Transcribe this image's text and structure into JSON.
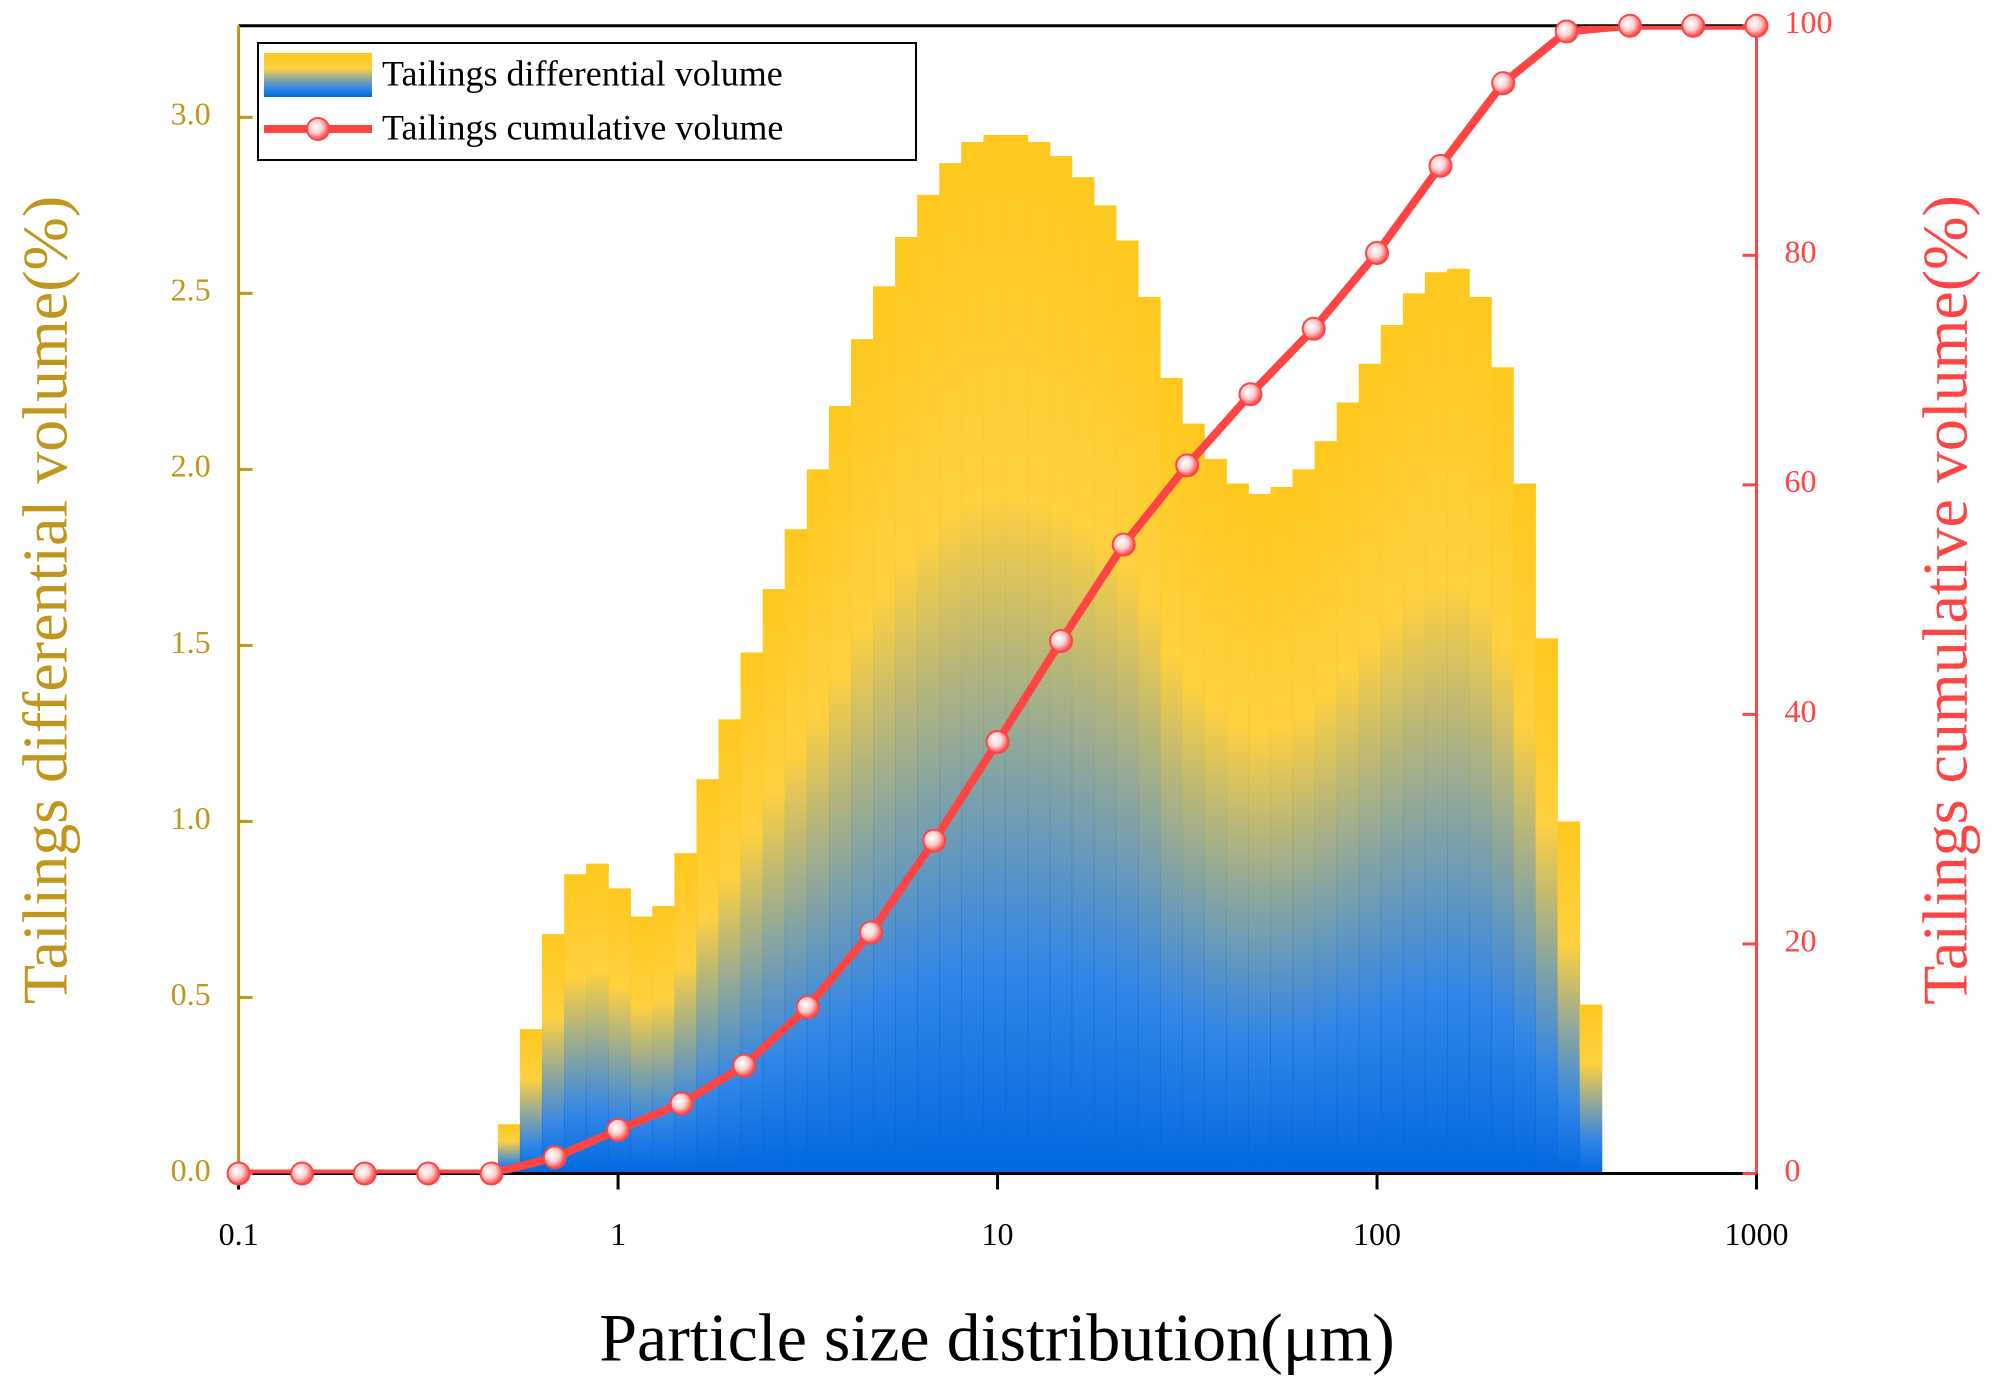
{
  "chart_data": {
    "type": "histogram",
    "x_label": "Particle size distribution(μm)",
    "y_label": "Tailings differential volume(%)",
    "y2_label": "Tailings cumulative volume(%)",
    "log_x": true,
    "xlim": [
      0.1,
      1000
    ],
    "xticks": [
      0.1,
      1,
      10,
      100,
      1000
    ],
    "ylim": [
      0,
      3.26
    ],
    "yticks": [
      {
        "value": 0,
        "label": "0.0"
      },
      0.5,
      {
        "value": 1,
        "label": "1.0"
      },
      1.5,
      {
        "value": 2,
        "label": "2.0"
      },
      2.5,
      {
        "value": 3,
        "label": "3.0"
      }
    ],
    "y2lim": [
      0,
      100
    ],
    "y2ticks": [
      0,
      20,
      40,
      60,
      80,
      100
    ],
    "y_color": "#c0961c",
    "y2_color": "#ff4444",
    "legend": "upper left",
    "series": [
      {
        "name": "Tailings differential volume",
        "type": "histogram",
        "colors": [
          "#ffc81e",
          "#0068e0"
        ],
        "bins": [
          0.482,
          0.551,
          0.63,
          0.721,
          0.824,
          0.942,
          1.077,
          1.231,
          1.407,
          1.609,
          1.84,
          2.103,
          2.404,
          2.749,
          3.143,
          3.594,
          4.109,
          4.697,
          5.37,
          6.14,
          7.02,
          8.026,
          9.177,
          10.49,
          12.0,
          13.72,
          15.68,
          17.93,
          20.5,
          23.44,
          26.8,
          30.64,
          35.04,
          40.06,
          45.8,
          52.36,
          59.87,
          68.45,
          78.26,
          89.48,
          102.3,
          117.0,
          133.7,
          152.9,
          174.8,
          199.9,
          228.5,
          261.3,
          298.7,
          341.6,
          390.8
        ],
        "values": [
          0.14,
          0.41,
          0.68,
          0.85,
          0.88,
          0.81,
          0.73,
          0.76,
          0.91,
          1.12,
          1.29,
          1.48,
          1.66,
          1.83,
          2.0,
          2.18,
          2.37,
          2.52,
          2.66,
          2.78,
          2.87,
          2.93,
          2.95,
          2.95,
          2.93,
          2.89,
          2.83,
          2.75,
          2.65,
          2.49,
          2.26,
          2.13,
          2.03,
          1.96,
          1.93,
          1.95,
          2.0,
          2.08,
          2.19,
          2.3,
          2.41,
          2.5,
          2.56,
          2.57,
          2.49,
          2.29,
          1.96,
          1.52,
          1.0,
          0.48
        ]
      },
      {
        "name": "Tailings cumulative volume",
        "type": "line",
        "axis": "y2",
        "color": "#ff4444",
        "x": [
          0.1,
          0.147,
          0.215,
          0.316,
          0.464,
          0.681,
          1,
          1.47,
          2.15,
          3.16,
          4.64,
          6.81,
          10,
          14.7,
          21.5,
          31.6,
          46.4,
          68.1,
          100,
          147,
          215,
          316,
          464,
          681,
          1000
        ],
        "values": [
          0,
          0,
          0,
          0,
          0,
          1.4,
          3.8,
          6.1,
          9.4,
          14.5,
          21,
          29,
          37.6,
          46.4,
          54.8,
          61.7,
          67.9,
          73.6,
          80.2,
          87.8,
          95,
          99.5,
          100,
          100,
          100
        ]
      }
    ]
  }
}
